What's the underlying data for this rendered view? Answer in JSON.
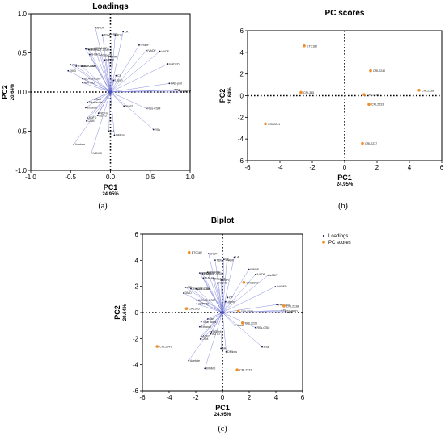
{
  "chart_data": [
    {
      "id": "a",
      "type": "scatter",
      "title": "Loadings",
      "caption": "(a)",
      "xlabel": "PC1",
      "xlabel_sub": "24.95%",
      "ylabel": "PC2",
      "ylabel_sub": "20.64%",
      "xlim": [
        -1.0,
        1.0
      ],
      "ylim": [
        -1.0,
        1.0
      ],
      "xticks": [
        "-1.0",
        "-0.5",
        "0.0",
        "0.5",
        "1.0"
      ],
      "yticks": [
        "1.0",
        "0.5",
        "0.0",
        "-0.5",
        "-1.0"
      ],
      "xtick_values": [
        -1.0,
        -0.5,
        0.0,
        0.5,
        1.0
      ],
      "ytick_values": [
        1.0,
        0.5,
        0.0,
        -0.5,
        -1.0
      ],
      "vectors_from_origin": true,
      "points": [
        {
          "label": "aNDF",
          "x": -0.19,
          "y": 0.82
        },
        {
          "label": "TDM",
          "x": -0.1,
          "y": 0.73
        },
        {
          "label": "EE",
          "x": 0.02,
          "y": 0.74
        },
        {
          "label": "ADF",
          "x": 0.06,
          "y": 0.73
        },
        {
          "label": "LA",
          "x": 0.16,
          "y": 0.77
        },
        {
          "label": "IVNDF",
          "x": 0.36,
          "y": 0.6
        },
        {
          "label": "IVADF",
          "x": 0.45,
          "y": 0.53
        },
        {
          "label": "ivADF",
          "x": 0.62,
          "y": 0.52
        },
        {
          "label": "IvADFD",
          "x": 0.72,
          "y": 0.36
        },
        {
          "label": "N-NH3",
          "x": -0.26,
          "y": 0.48
        },
        {
          "label": "DMR",
          "x": -0.02,
          "y": 0.45
        },
        {
          "label": "NDFD",
          "x": -0.07,
          "y": 0.41
        },
        {
          "label": "RSsADF",
          "x": -0.13,
          "y": 0.47
        },
        {
          "label": "RSsNDF",
          "x": -0.2,
          "y": 0.56
        },
        {
          "label": "RSsDM",
          "x": -0.31,
          "y": 0.55
        },
        {
          "label": "RSsNDF-CSM",
          "x": -0.27,
          "y": 0.54
        },
        {
          "label": "RSsDM-CSM",
          "x": -0.43,
          "y": 0.33
        },
        {
          "label": "ADL",
          "x": -0.5,
          "y": 0.35
        },
        {
          "label": "ADF-CSM",
          "x": -0.36,
          "y": 0.33
        },
        {
          "label": "DMD",
          "x": -0.53,
          "y": 0.27
        },
        {
          "label": "CP",
          "x": 0.07,
          "y": 0.21
        },
        {
          "label": "Lignin",
          "x": 0.04,
          "y": 0.15
        },
        {
          "label": "IVDMD-CSM",
          "x": -0.35,
          "y": 0.17
        },
        {
          "label": "ADFIVD",
          "x": -0.35,
          "y": 0.12
        },
        {
          "label": "FAE-pmt",
          "x": 0.74,
          "y": 0.11
        },
        {
          "label": "PA",
          "x": 0.81,
          "y": 0.03
        },
        {
          "label": "IVNDFD",
          "x": 0.86,
          "y": 0.02
        },
        {
          "label": "GP",
          "x": 0.89,
          "y": 0.0
        },
        {
          "label": "Ash",
          "x": -0.2,
          "y": -0.09
        },
        {
          "label": "Total acids",
          "x": -0.29,
          "y": -0.13
        },
        {
          "label": "Ethanol",
          "x": -0.31,
          "y": -0.2
        },
        {
          "label": "Yeast",
          "x": 0.17,
          "y": -0.18
        },
        {
          "label": "RSs-CSM",
          "x": 0.45,
          "y": -0.21
        },
        {
          "label": "NDFnt",
          "x": -0.15,
          "y": -0.27
        },
        {
          "label": "ADTD",
          "x": -0.16,
          "y": -0.3
        },
        {
          "label": "ADFD",
          "x": -0.29,
          "y": -0.33
        },
        {
          "label": "CSM",
          "x": -0.3,
          "y": -0.37
        },
        {
          "label": "pH",
          "x": -0.02,
          "y": -0.5
        },
        {
          "label": "DMloss",
          "x": 0.05,
          "y": -0.55
        },
        {
          "label": "RSs",
          "x": 0.54,
          "y": -0.48
        },
        {
          "label": "Acetate",
          "x": -0.46,
          "y": -0.67
        },
        {
          "label": "IVDMD",
          "x": -0.24,
          "y": -0.78
        }
      ]
    },
    {
      "id": "b",
      "type": "scatter",
      "title": "PC scores",
      "caption": "(b)",
      "xlabel": "PC1",
      "xlabel_sub": "24.95%",
      "ylabel": "PC2",
      "ylabel_sub": "20.64%",
      "xlim": [
        -6,
        6
      ],
      "ylim": [
        -6,
        6
      ],
      "xticks": [
        "-6",
        "-4",
        "-2",
        "0",
        "2",
        "4",
        "6"
      ],
      "yticks": [
        "6",
        "4",
        "2",
        "0",
        "-2",
        "-4",
        "-6"
      ],
      "xtick_values": [
        -6,
        -4,
        -2,
        0,
        2,
        4,
        6
      ],
      "ytick_values": [
        6,
        4,
        2,
        0,
        -2,
        -4,
        -6
      ],
      "color": "#f28c28",
      "points": [
        {
          "label": "ETC182",
          "x": -2.5,
          "y": 4.6
        },
        {
          "label": "CRL2240",
          "x": 1.6,
          "y": 2.3
        },
        {
          "label": "CRL345",
          "x": -2.7,
          "y": 0.3
        },
        {
          "label": "CRL2238",
          "x": 4.6,
          "y": 0.5
        },
        {
          "label": "CRL2236",
          "x": 1.2,
          "y": 0.1
        },
        {
          "label": "CRL2233",
          "x": 1.5,
          "y": -0.8
        },
        {
          "label": "CRL2241",
          "x": -4.9,
          "y": -2.6
        },
        {
          "label": "CRL2237",
          "x": 1.1,
          "y": -4.4
        }
      ]
    },
    {
      "id": "c",
      "type": "scatter",
      "title": "Biplot",
      "caption": "(c)",
      "xlabel": "PC1",
      "xlabel_sub": "24.95%",
      "ylabel": "PC2",
      "ylabel_sub": "20.64%",
      "xlim": [
        -6,
        6
      ],
      "ylim": [
        -6,
        6
      ],
      "xticks": [
        "-6",
        "-4",
        "-2",
        "0",
        "2",
        "4",
        "6"
      ],
      "yticks": [
        "6",
        "4",
        "2",
        "0",
        "-2",
        "-4",
        "-6"
      ],
      "xtick_values": [
        -6,
        -4,
        -2,
        0,
        2,
        4,
        6
      ],
      "ytick_values": [
        6,
        4,
        2,
        0,
        -2,
        -4,
        -6
      ],
      "loadings_scale": 5.5,
      "legend": {
        "position": "top-right",
        "entries": [
          {
            "name": "Loadings",
            "color": "#1a1a4d"
          },
          {
            "name": "PC scores",
            "color": "#f28c28"
          }
        ]
      }
    }
  ]
}
